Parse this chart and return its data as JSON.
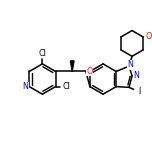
{
  "background": "#ffffff",
  "figsize": [
    1.52,
    1.52
  ],
  "dpi": 100,
  "bond_color": "#000000",
  "bond_lw": 1.1,
  "atom_colors": {
    "N": "#0000ff",
    "O": "#ff0000",
    "Cl": "#000000",
    "I": "#000000",
    "C": "#000000"
  },
  "font_size": 5.8,
  "wedge_color": "#000000"
}
